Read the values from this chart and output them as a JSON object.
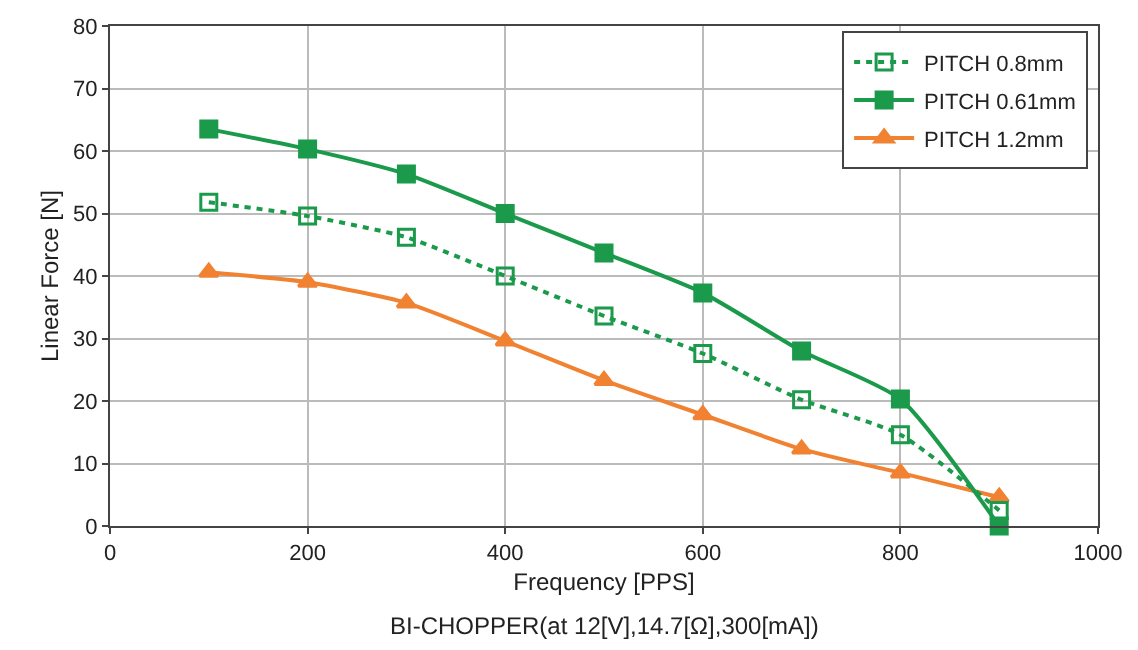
{
  "chart_data": {
    "type": "line",
    "x": [
      100,
      200,
      300,
      400,
      500,
      600,
      700,
      800,
      900
    ],
    "series": [
      {
        "name": "PITCH 0.61mm",
        "color": "#1a9a4a",
        "marker": "square",
        "line_style": "solid",
        "values": [
          63.5,
          60.3,
          56.3,
          50,
          43.7,
          37.3,
          28,
          20.3,
          0
        ]
      },
      {
        "name": "PITCH 0.8mm",
        "color": "#1a9a4a",
        "marker": "square-open",
        "line_style": "dotted",
        "values": [
          51.8,
          49.6,
          46.2,
          40,
          33.6,
          27.6,
          20.2,
          14.6,
          2.5
        ]
      },
      {
        "name": "PITCH 1.2mm",
        "color": "#f08232",
        "marker": "triangle",
        "line_style": "solid",
        "values": [
          40.6,
          39,
          35.7,
          29.6,
          23.3,
          17.8,
          12.3,
          8.5,
          4.6
        ]
      }
    ],
    "xlabel": "Frequency [PPS]",
    "ylabel": "Linear Force [N]",
    "annotations": [
      "BI-CHOPPER(at 12[V],14.7[Ω],300[mA])"
    ],
    "xlim": [
      0,
      1000
    ],
    "xticks": [
      0,
      200,
      400,
      600,
      800,
      1000
    ],
    "ylim": [
      0,
      80
    ],
    "yticks": [
      0,
      10,
      20,
      30,
      40,
      50,
      60,
      70,
      80
    ],
    "grid": true,
    "legend": "top right"
  }
}
